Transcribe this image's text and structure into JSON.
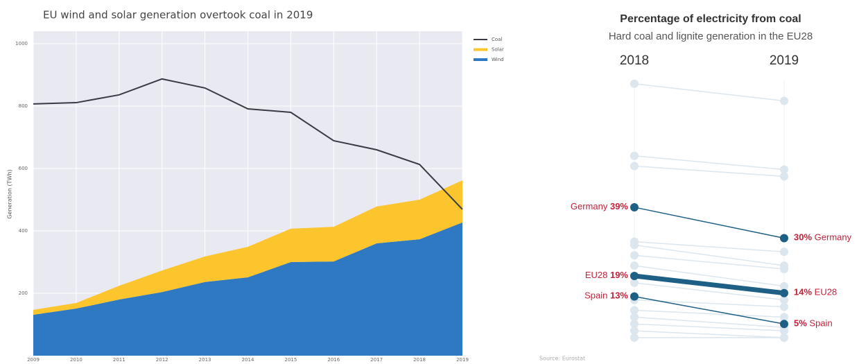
{
  "chart_data": [
    {
      "type": "area",
      "title": "EU wind and solar generation overtook coal in 2019",
      "ylabel": "Generation (TWh)",
      "categories": [
        "2009",
        "2010",
        "2011",
        "2012",
        "2013",
        "2014",
        "2015",
        "2016",
        "2017",
        "2018",
        "2019"
      ],
      "series": [
        {
          "name": "Coal",
          "kind": "line",
          "color": "#3a3a44",
          "values": [
            807,
            811,
            836,
            887,
            858,
            791,
            780,
            689,
            660,
            613,
            469
          ]
        },
        {
          "name": "Solar",
          "kind": "area",
          "color": "#fcc42d",
          "values": [
            16,
            18,
            44,
            69,
            82,
            98,
            107,
            111,
            118,
            127,
            135
          ]
        },
        {
          "name": "Wind",
          "kind": "area",
          "color": "#2f78c2",
          "values": [
            131,
            151,
            180,
            204,
            236,
            251,
            300,
            302,
            360,
            373,
            427
          ]
        }
      ],
      "ylim": [
        0,
        1040
      ],
      "yticks": [
        200,
        400,
        600,
        800,
        1000
      ],
      "background": "#e9e9f1"
    },
    {
      "type": "slope",
      "title": "Percentage of electricity from coal",
      "subtitle": "Hard coal and lignite generation in the EU28",
      "categories": [
        "2018",
        "2019"
      ],
      "ylim": [
        0,
        78
      ],
      "note": "Source: Eurostat",
      "label_color": "#c0223b",
      "series": [
        {
          "values": [
            75,
            70
          ],
          "color": "#dbe6ee"
        },
        {
          "values": [
            54,
            50
          ],
          "color": "#dbe6ee"
        },
        {
          "values": [
            51,
            48
          ],
          "color": "#dbe6ee"
        },
        {
          "values": [
            29,
            26
          ],
          "color": "#dbe6ee"
        },
        {
          "values": [
            28,
            22
          ],
          "color": "#dbe6ee"
        },
        {
          "values": [
            25,
            21
          ],
          "color": "#dbe6ee"
        },
        {
          "values": [
            22,
            16
          ],
          "color": "#dbe6ee"
        },
        {
          "values": [
            17,
            12
          ],
          "color": "#dbe6ee"
        },
        {
          "values": [
            12,
            10
          ],
          "color": "#dbe6ee"
        },
        {
          "values": [
            9,
            7
          ],
          "color": "#dbe6ee"
        },
        {
          "values": [
            7,
            4
          ],
          "color": "#dbe6ee"
        },
        {
          "values": [
            5,
            3
          ],
          "color": "#dbe6ee"
        },
        {
          "values": [
            3,
            1
          ],
          "color": "#dbe6ee"
        },
        {
          "values": [
            1,
            1
          ],
          "color": "#dbe6ee"
        },
        {
          "name": "Germany",
          "values": [
            39,
            30
          ],
          "value_labels": [
            "39%",
            "30%"
          ],
          "color": "#1d5f85",
          "line_width": 1.5
        },
        {
          "name": "EU28",
          "values": [
            19,
            14
          ],
          "value_labels": [
            "19%",
            "14%"
          ],
          "color": "#1d5f85",
          "line_width": 7
        },
        {
          "name": "Spain",
          "values": [
            13,
            5
          ],
          "value_labels": [
            "13%",
            "5%"
          ],
          "color": "#1d5f85",
          "line_width": 1.5
        }
      ]
    }
  ]
}
